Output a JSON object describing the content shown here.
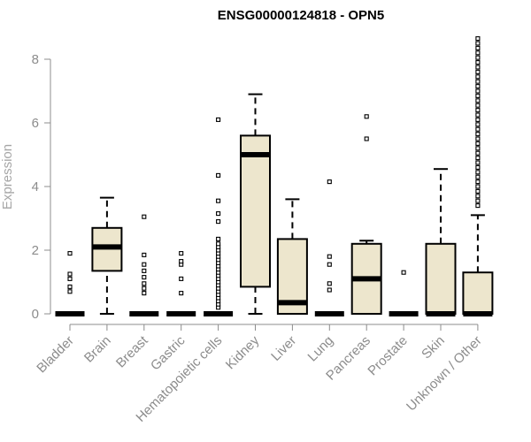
{
  "chart_data": {
    "type": "boxplot",
    "title": "ENSG00000124818 - OPN5",
    "ylabel": "Expression",
    "xlabel": "",
    "ylim": [
      0,
      8.7
    ],
    "yticks": [
      0,
      2,
      4,
      6,
      8
    ],
    "box_fill": "#ede6cd",
    "box_stroke": "#000000",
    "categories": [
      "Bladder",
      "Brain",
      "Breast",
      "Gastric",
      "Hematopoietic cells",
      "Kidney",
      "Liver",
      "Lung",
      "Pancreas",
      "Prostate",
      "Skin",
      "Unknown / Other"
    ],
    "boxes": [
      {
        "q1": 0,
        "median": 0,
        "q3": 0,
        "whisker_low": 0,
        "whisker_high": 0,
        "outliers": [
          0.7,
          0.85,
          1.1,
          1.25,
          1.9
        ]
      },
      {
        "q1": 1.35,
        "median": 2.1,
        "q3": 2.7,
        "whisker_low": 0,
        "whisker_high": 3.65,
        "outliers": []
      },
      {
        "q1": 0,
        "median": 0,
        "q3": 0,
        "whisker_low": 0,
        "whisker_high": 0,
        "outliers": [
          0.65,
          0.8,
          0.95,
          1.15,
          1.35,
          1.55,
          1.85,
          3.05
        ]
      },
      {
        "q1": 0,
        "median": 0,
        "q3": 0,
        "whisker_low": 0,
        "whisker_high": 0,
        "outliers": [
          0.65,
          1.1,
          1.55,
          1.65,
          1.9
        ]
      },
      {
        "q1": 0,
        "median": 0,
        "q3": 0,
        "whisker_low": 0,
        "whisker_high": 0,
        "outliers": [
          0.2,
          0.3,
          0.4,
          0.5,
          0.6,
          0.7,
          0.8,
          0.9,
          1.0,
          1.1,
          1.2,
          1.3,
          1.4,
          1.5,
          1.6,
          1.7,
          1.8,
          1.9,
          2.0,
          2.1,
          2.2,
          2.35,
          2.9,
          3.15,
          3.55,
          4.35,
          6.1
        ]
      },
      {
        "q1": 0.85,
        "median": 5.0,
        "q3": 5.6,
        "whisker_low": 0,
        "whisker_high": 6.9,
        "outliers": []
      },
      {
        "q1": 0,
        "median": 0.35,
        "q3": 2.35,
        "whisker_low": 0,
        "whisker_high": 3.6,
        "outliers": []
      },
      {
        "q1": 0,
        "median": 0,
        "q3": 0,
        "whisker_low": 0,
        "whisker_high": 0,
        "outliers": [
          0.75,
          0.95,
          1.55,
          1.8,
          4.15
        ]
      },
      {
        "q1": 0,
        "median": 1.1,
        "q3": 2.2,
        "whisker_low": 0,
        "whisker_high": 2.3,
        "outliers": [
          5.5,
          6.2
        ]
      },
      {
        "q1": 0,
        "median": 0,
        "q3": 0,
        "whisker_low": 0,
        "whisker_high": 0,
        "outliers": [
          1.3
        ]
      },
      {
        "q1": 0,
        "median": 0,
        "q3": 2.2,
        "whisker_low": 0,
        "whisker_high": 4.55,
        "outliers": []
      },
      {
        "q1": 0,
        "median": 0,
        "q3": 1.3,
        "whisker_low": 0,
        "whisker_high": 3.1,
        "outliers": [
          3.4,
          3.55,
          3.7,
          3.85,
          4.0,
          4.15,
          4.3,
          4.45,
          4.6,
          4.75,
          4.9,
          5.05,
          5.2,
          5.35,
          5.5,
          5.65,
          5.8,
          5.95,
          6.1,
          6.25,
          6.4,
          6.55,
          6.7,
          6.85,
          7.0,
          7.15,
          7.3,
          7.45,
          7.6,
          7.75,
          7.9,
          8.05,
          8.2,
          8.35,
          8.5,
          8.65
        ]
      }
    ]
  }
}
